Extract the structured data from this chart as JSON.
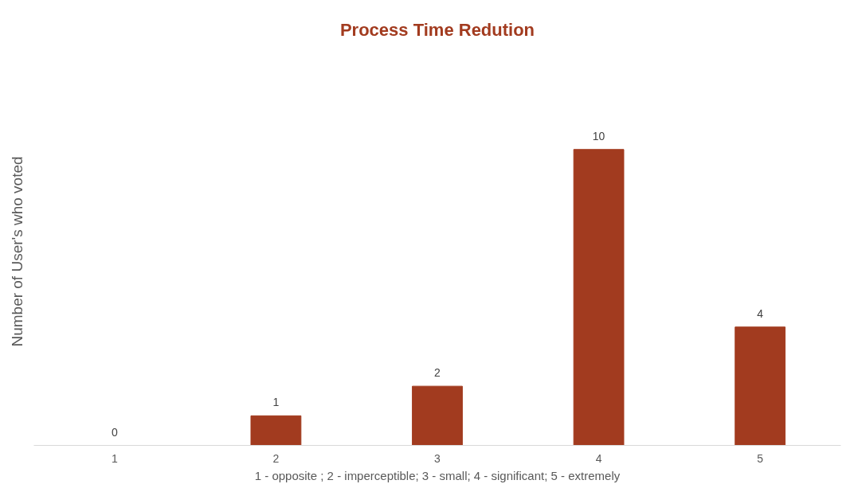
{
  "chart_data": {
    "type": "bar",
    "title": "Process Time Redution",
    "xlabel": "1 - opposite ; 2 - imperceptible; 3 - small; 4 - significant; 5 - extremely",
    "ylabel": "Number of User's who voted",
    "categories": [
      "1",
      "2",
      "3",
      "4",
      "5"
    ],
    "values": [
      0,
      1,
      2,
      10,
      4
    ],
    "color": "#a23b1f",
    "data_labels": true,
    "tick_labels": "x",
    "grid": false
  }
}
